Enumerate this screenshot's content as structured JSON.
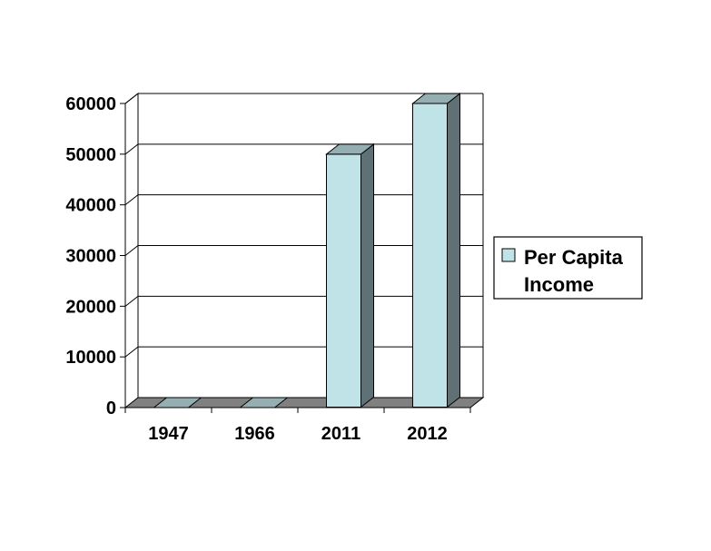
{
  "chart_data": {
    "type": "bar",
    "title": "",
    "xlabel": "",
    "ylabel": "",
    "categories": [
      "1947",
      "1966",
      "2011",
      "2012"
    ],
    "series": [
      {
        "name": "Per Capita Income",
        "values": [
          0,
          0,
          50000,
          60000
        ]
      }
    ],
    "ylim": [
      0,
      60000
    ],
    "yticks": [
      0,
      10000,
      20000,
      30000,
      40000,
      50000,
      60000
    ],
    "grid": true,
    "legend_position": "right",
    "three_d": true,
    "colors": {
      "bar_front": "#bfe3e6",
      "bar_top": "#94aeb1",
      "bar_side": "#5f7174",
      "floor": "#808080",
      "grid": "#000000"
    }
  },
  "legend": {
    "line1": "Per Capita",
    "line2": "Income"
  }
}
